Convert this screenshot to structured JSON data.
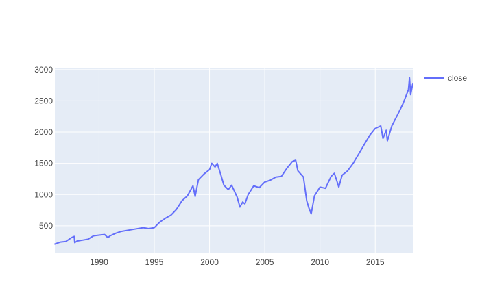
{
  "chart_data": {
    "type": "line",
    "title": "",
    "xlabel": "",
    "ylabel": "",
    "x_ticks": [
      "1990",
      "1995",
      "2000",
      "2005",
      "2010",
      "2015"
    ],
    "y_ticks": [
      "500",
      "1000",
      "1500",
      "2000",
      "2500",
      "3000"
    ],
    "xlim": [
      1986.0,
      2018.4
    ],
    "ylim": [
      60,
      3020
    ],
    "grid": true,
    "legend_position": "top-right",
    "colors": {
      "plot_bg": "#e5ecf6",
      "grid": "#ffffff",
      "line": "#636efa",
      "text": "#444444"
    },
    "series": [
      {
        "name": "close",
        "x": [
          1986.0,
          1986.5,
          1987.0,
          1987.5,
          1987.75,
          1987.8,
          1988.0,
          1988.5,
          1989.0,
          1989.5,
          1990.0,
          1990.5,
          1990.8,
          1991.0,
          1991.5,
          1992.0,
          1993.0,
          1994.0,
          1994.5,
          1995.0,
          1995.5,
          1996.0,
          1996.5,
          1997.0,
          1997.5,
          1998.0,
          1998.5,
          1998.7,
          1999.0,
          1999.5,
          2000.0,
          2000.2,
          2000.5,
          2000.7,
          2001.0,
          2001.3,
          2001.7,
          2002.0,
          2002.5,
          2002.75,
          2003.0,
          2003.2,
          2003.5,
          2004.0,
          2004.5,
          2005.0,
          2005.5,
          2006.0,
          2006.5,
          2007.0,
          2007.5,
          2007.8,
          2008.0,
          2008.5,
          2008.8,
          2009.0,
          2009.2,
          2009.5,
          2010.0,
          2010.5,
          2011.0,
          2011.3,
          2011.7,
          2012.0,
          2012.5,
          2013.0,
          2013.5,
          2014.0,
          2014.5,
          2015.0,
          2015.5,
          2015.7,
          2016.0,
          2016.1,
          2016.5,
          2017.0,
          2017.5,
          2018.0,
          2018.1,
          2018.2,
          2018.4
        ],
        "values": [
          208,
          240,
          250,
          310,
          330,
          230,
          255,
          270,
          285,
          340,
          350,
          360,
          310,
          340,
          380,
          410,
          440,
          470,
          455,
          470,
          560,
          620,
          670,
          760,
          900,
          980,
          1140,
          970,
          1240,
          1330,
          1400,
          1500,
          1440,
          1500,
          1330,
          1150,
          1080,
          1150,
          960,
          800,
          880,
          850,
          1000,
          1140,
          1110,
          1200,
          1230,
          1280,
          1290,
          1420,
          1530,
          1550,
          1380,
          1280,
          900,
          780,
          690,
          980,
          1120,
          1100,
          1290,
          1340,
          1120,
          1310,
          1380,
          1500,
          1650,
          1800,
          1950,
          2060,
          2100,
          1900,
          2030,
          1860,
          2100,
          2270,
          2450,
          2680,
          2870,
          2600,
          2780
        ]
      }
    ]
  }
}
